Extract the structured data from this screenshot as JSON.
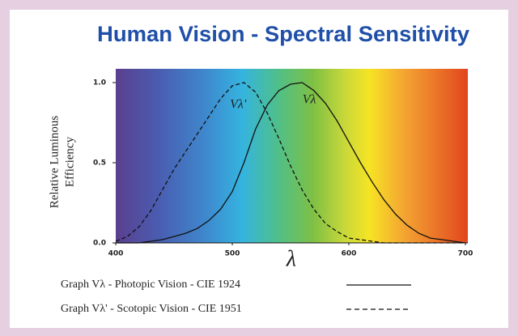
{
  "chart_data": {
    "type": "line",
    "title": "Human Vision - Spectral Sensitivity",
    "ylabel": [
      "Relative Luminous",
      "Efficiency"
    ],
    "xlabel": "λ",
    "annotations": [
      {
        "text": "Vλ'",
        "x": 505,
        "y": 0.86
      },
      {
        "text": "Vλ",
        "x": 566,
        "y": 0.89
      }
    ],
    "x": [
      400,
      410,
      420,
      430,
      440,
      450,
      460,
      470,
      480,
      490,
      500,
      510,
      520,
      530,
      540,
      550,
      560,
      570,
      580,
      590,
      600,
      610,
      620,
      630,
      640,
      650,
      660,
      670,
      680,
      690,
      700
    ],
    "series": [
      {
        "name": "Graph Vλ - Photopic Vision - CIE 1924",
        "color": "#111111",
        "dash": false,
        "values": [
          0,
          0,
          0,
          0.01,
          0.02,
          0.04,
          0.06,
          0.09,
          0.14,
          0.21,
          0.32,
          0.5,
          0.71,
          0.86,
          0.95,
          0.99,
          1.0,
          0.95,
          0.87,
          0.76,
          0.63,
          0.5,
          0.38,
          0.27,
          0.18,
          0.11,
          0.06,
          0.03,
          0.02,
          0.01,
          0
        ]
      },
      {
        "name": "Graph Vλ' - Scotopic Vision - CIE 1951",
        "color": "#111111",
        "dash": true,
        "values": [
          0.01,
          0.04,
          0.1,
          0.2,
          0.33,
          0.46,
          0.57,
          0.68,
          0.79,
          0.9,
          0.98,
          1.0,
          0.94,
          0.81,
          0.65,
          0.48,
          0.33,
          0.21,
          0.12,
          0.07,
          0.03,
          0.02,
          0.01,
          0,
          0,
          0,
          0,
          0,
          0,
          0,
          0
        ]
      }
    ],
    "xlim": [
      400,
      700
    ],
    "xticks": [
      400,
      500,
      600,
      700
    ],
    "ylim": [
      0,
      1
    ],
    "yticks": [
      {
        "value": 0,
        "label": "0.0"
      },
      0.5,
      {
        "value": 1,
        "label": "1.0"
      }
    ]
  }
}
